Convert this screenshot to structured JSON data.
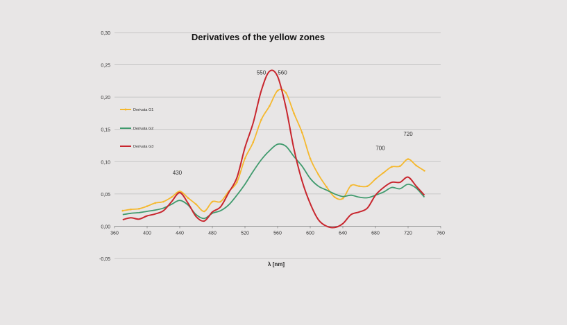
{
  "chart_data": {
    "type": "line",
    "title": "Derivatives of the yellow zones",
    "xlabel": "λ [nm]",
    "ylabel": "",
    "xlim": [
      360,
      760
    ],
    "ylim": [
      -0.05,
      0.3
    ],
    "x_ticks": [
      "360",
      "400",
      "440",
      "480",
      "520",
      "560",
      "600",
      "640",
      "680",
      "720",
      "760"
    ],
    "y_ticks": [
      "-0,05",
      "0,00",
      "0,05",
      "0,10",
      "0,15",
      "0,20",
      "0,25",
      "0,30"
    ],
    "grid": true,
    "legend_position": "left",
    "annotations": [
      {
        "text": "430",
        "x": 437,
        "y": 0.08
      },
      {
        "text": "550",
        "x": 540,
        "y": 0.235
      },
      {
        "text": "560",
        "x": 566,
        "y": 0.235
      },
      {
        "text": "700",
        "x": 686,
        "y": 0.118
      },
      {
        "text": "720",
        "x": 720,
        "y": 0.14
      }
    ],
    "series": [
      {
        "name": "Derivata G1",
        "color": "#f5b82e",
        "markers": true,
        "x": [
          370,
          380,
          390,
          400,
          410,
          420,
          430,
          440,
          450,
          460,
          470,
          480,
          490,
          500,
          510,
          520,
          530,
          540,
          550,
          560,
          570,
          580,
          590,
          600,
          610,
          620,
          630,
          640,
          650,
          660,
          670,
          680,
          690,
          700,
          710,
          720,
          730,
          740
        ],
        "y": [
          0.024,
          0.026,
          0.027,
          0.031,
          0.036,
          0.038,
          0.045,
          0.054,
          0.044,
          0.034,
          0.023,
          0.038,
          0.038,
          0.054,
          0.068,
          0.105,
          0.13,
          0.165,
          0.186,
          0.21,
          0.207,
          0.175,
          0.145,
          0.105,
          0.08,
          0.061,
          0.045,
          0.043,
          0.063,
          0.062,
          0.062,
          0.073,
          0.083,
          0.092,
          0.093,
          0.104,
          0.094,
          0.086
        ]
      },
      {
        "name": "Derivata G2",
        "color": "#3f9a6d",
        "markers": false,
        "x": [
          370,
          380,
          390,
          400,
          410,
          420,
          430,
          440,
          450,
          460,
          470,
          480,
          490,
          500,
          510,
          520,
          530,
          540,
          550,
          560,
          570,
          580,
          590,
          600,
          610,
          620,
          630,
          640,
          650,
          660,
          670,
          680,
          690,
          700,
          710,
          720,
          730,
          740
        ],
        "y": [
          0.018,
          0.02,
          0.021,
          0.023,
          0.025,
          0.028,
          0.034,
          0.04,
          0.033,
          0.018,
          0.012,
          0.02,
          0.024,
          0.033,
          0.048,
          0.065,
          0.085,
          0.103,
          0.117,
          0.127,
          0.124,
          0.108,
          0.093,
          0.074,
          0.062,
          0.056,
          0.05,
          0.046,
          0.048,
          0.045,
          0.044,
          0.048,
          0.053,
          0.06,
          0.058,
          0.065,
          0.059,
          0.045
        ]
      },
      {
        "name": "Derivata G3",
        "color": "#c8262e",
        "markers": false,
        "x": [
          370,
          380,
          390,
          400,
          410,
          420,
          430,
          440,
          450,
          460,
          470,
          480,
          490,
          500,
          510,
          520,
          530,
          540,
          550,
          560,
          570,
          580,
          590,
          600,
          610,
          620,
          630,
          640,
          650,
          660,
          670,
          680,
          690,
          700,
          710,
          720,
          730,
          740
        ],
        "y": [
          0.01,
          0.013,
          0.011,
          0.016,
          0.019,
          0.024,
          0.038,
          0.052,
          0.036,
          0.015,
          0.008,
          0.022,
          0.03,
          0.052,
          0.075,
          0.122,
          0.16,
          0.21,
          0.24,
          0.232,
          0.185,
          0.12,
          0.07,
          0.035,
          0.01,
          0.0,
          -0.002,
          0.004,
          0.018,
          0.022,
          0.028,
          0.048,
          0.06,
          0.068,
          0.068,
          0.076,
          0.062,
          0.048
        ]
      }
    ]
  }
}
